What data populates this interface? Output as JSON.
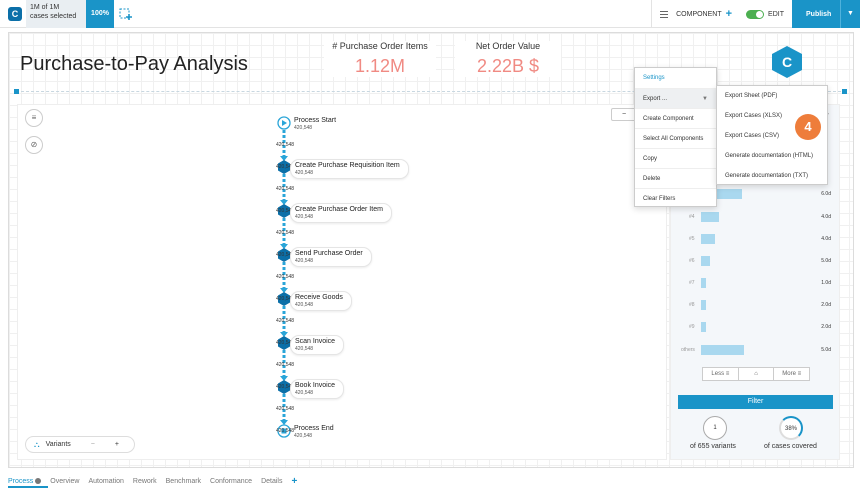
{
  "topbar": {
    "cases_count": "1M of 1M",
    "cases_selected": "cases selected",
    "percentage": "100%",
    "component_label": "COMPONENT",
    "edit_label": "EDIT",
    "publish_label": "Publish"
  },
  "page": {
    "title": "Purchase-to-Pay Analysis"
  },
  "kpis": [
    {
      "label": "# Purchase Order Items",
      "value": "1.12M"
    },
    {
      "label": "Net Order Value",
      "value": "2.22B $"
    }
  ],
  "colors": {
    "accent": "#1a94c8",
    "kpi_value": "#f08a83",
    "node_hex": "#0b6fa8",
    "step_badge": "#ee7d3b"
  },
  "process": {
    "nodes": [
      {
        "name": "Process Start",
        "count": "420,548",
        "kind": "start"
      },
      {
        "name": "Create Purchase Requisition Item",
        "count": "420,548",
        "kind": "activity"
      },
      {
        "name": "Create Purchase Order Item",
        "count": "420,548",
        "kind": "activity"
      },
      {
        "name": "Send Purchase Order",
        "count": "420,548",
        "kind": "activity"
      },
      {
        "name": "Receive Goods",
        "count": "420,548",
        "kind": "activity"
      },
      {
        "name": "Scan Invoice",
        "count": "420,548",
        "kind": "activity"
      },
      {
        "name": "Book Invoice",
        "count": "420,548",
        "kind": "activity"
      },
      {
        "name": "Process End",
        "count": "420,548",
        "kind": "end"
      }
    ],
    "edges": [
      "420,548",
      "420,548",
      "420,548",
      "420,548",
      "420,548",
      "420,548",
      "420,548",
      "420,548",
      "420,548",
      "420,548",
      "420,548",
      "420,548",
      "420,548",
      "420,548"
    ]
  },
  "variants_bar": {
    "label": "Variants",
    "minus": "−",
    "plus": "+"
  },
  "variant_list": {
    "rows": [
      {
        "num": "",
        "fraction": 0.45,
        "duration": "6.0d"
      },
      {
        "num": "#4",
        "fraction": 0.2,
        "duration": "4.0d"
      },
      {
        "num": "#5",
        "fraction": 0.15,
        "duration": "4.0d"
      },
      {
        "num": "#6",
        "fraction": 0.1,
        "duration": "5.0d"
      },
      {
        "num": "#7",
        "fraction": 0.06,
        "duration": "1.0d"
      },
      {
        "num": "#8",
        "fraction": 0.05,
        "duration": "2.0d"
      },
      {
        "num": "#9",
        "fraction": 0.05,
        "duration": "2.0d"
      },
      {
        "num": "others",
        "fraction": 0.48,
        "duration": "5.0d"
      }
    ],
    "less_label": "Less",
    "more_label": "More",
    "filter_label": "Filter",
    "variant_count": "1",
    "variant_caption": "of 655 variants",
    "coverage": "38%",
    "coverage_caption": "of cases covered"
  },
  "context_menu": {
    "items": [
      "Settings",
      "Export ...",
      "Create Component",
      "Select All Components",
      "Copy",
      "Delete",
      "Clear Filters"
    ]
  },
  "export_submenu": {
    "items": [
      "Export Sheet (PDF)",
      "Export Cases (XLSX)",
      "Export Cases (CSV)",
      "Generate documentation (HTML)",
      "Generate documentation (TXT)"
    ]
  },
  "step_badge": "4",
  "brand_badge": "C",
  "logo_letter": "C",
  "tabs": [
    "Process",
    "Overview",
    "Automation",
    "Rework",
    "Benchmark",
    "Conformance",
    "Details"
  ]
}
